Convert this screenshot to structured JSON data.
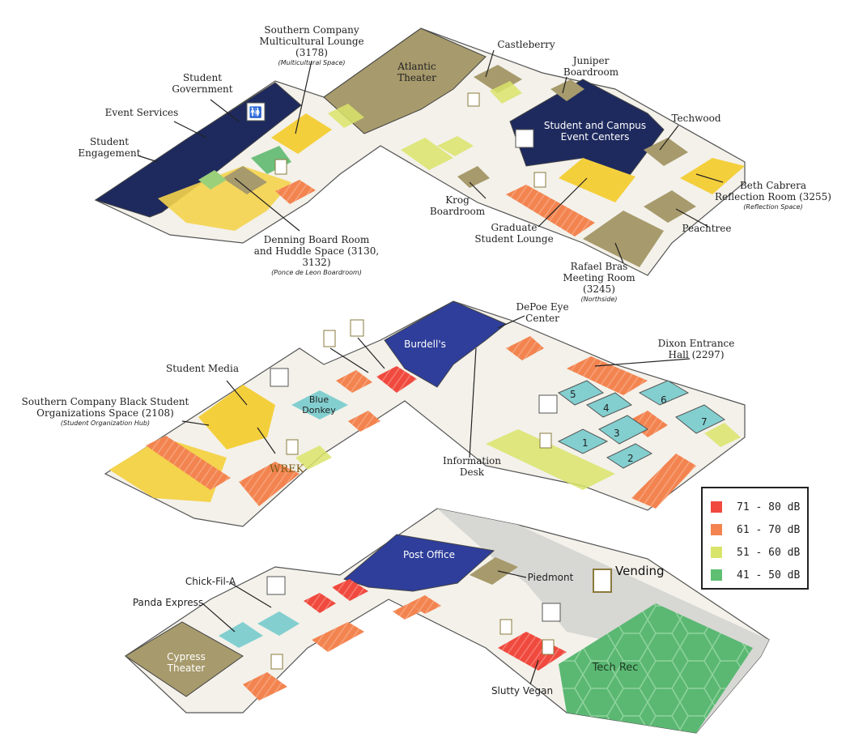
{
  "legend": {
    "items": [
      {
        "label": "71 - 80 dB",
        "color": "#f04a3f"
      },
      {
        "label": "61 - 70 dB",
        "color": "#f38450"
      },
      {
        "label": "51 - 60 dB",
        "color": "#d9e46a"
      },
      {
        "label": "41 - 50 dB",
        "color": "#5fbf73"
      }
    ]
  },
  "colors": {
    "navy": "#1e2a5e",
    "blue": "#2e3e9a",
    "tan": "#a79a6c",
    "yellow": "#f4cf3c",
    "teal": "#83cfd0",
    "gray": "#d7d7d4",
    "floor": "#f3f1ea",
    "green": "#6fbf7c"
  },
  "level3": {
    "southern_company_lounge": "Southern Company\nMulticultural Lounge (3178)",
    "southern_company_lounge_sub": "(Multicultural Space)",
    "castleberry": "Castleberry",
    "atlantic_theater": "Atlantic\nTheater",
    "juniper": "Juniper\nBoardroom",
    "student_government": "Student\nGovernment",
    "event_services": "Event Services",
    "student_engagement": "Student\nEngagement",
    "student_campus_event_centers": "Student and Campus\nEvent Centers",
    "techwood": "Techwood",
    "beth_cabrera": "Beth Cabrera\nReflection Room (3255)",
    "beth_cabrera_sub": "(Reflection Space)",
    "krog": "Krog\nBoardroom",
    "peachtree": "Peachtree",
    "graduate_lounge": "Graduate\nStudent Lounge",
    "denning": "Denning Board Room\nand Huddle Space (3130, 3132)",
    "denning_sub": "(Ponce de Leon Boardroom)",
    "rafael_bras": "Rafael Bras\nMeeting Room (3245)",
    "rafael_bras_sub": "(Northside)"
  },
  "level2": {
    "depoe": "DePoe Eye\nCenter",
    "burdells": "Burdell's",
    "dixon": "Dixon Entrance\nHall (2297)",
    "student_media": "Student Media",
    "blue_donkey": "Blue\nDonkey",
    "southern_company_black": "Southern Company Black Student\nOrganizations Space (2108)",
    "southern_company_black_sub": "(Student Organization Hub)",
    "wrek": "WREK",
    "information_desk": "Information\nDesk",
    "rooms": [
      "1",
      "2",
      "3",
      "4",
      "5",
      "6",
      "7"
    ]
  },
  "level1": {
    "post_office": "Post Office",
    "piedmont": "Piedmont",
    "vending": "Vending",
    "chick_fil_a": "Chick-Fil-A",
    "panda_express": "Panda Express",
    "cypress_theater": "Cypress\nTheater",
    "tech_rec": "Tech Rec",
    "slutty_vegan": "Slutty Vegan"
  }
}
